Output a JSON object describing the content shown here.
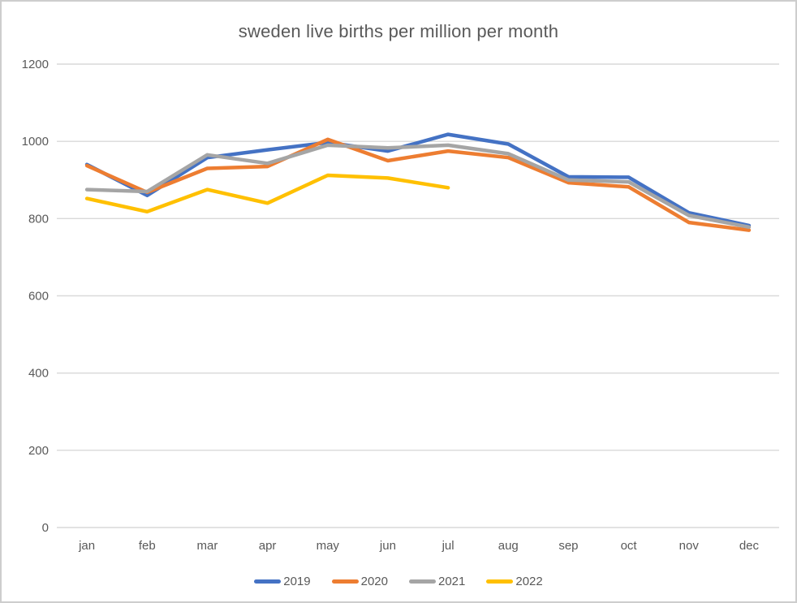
{
  "chart": {
    "title": "sweden live births per million per month"
  },
  "chart_data": {
    "type": "line",
    "title": "sweden live births per million per month",
    "xlabel": "",
    "ylabel": "",
    "categories": [
      "jan",
      "feb",
      "mar",
      "apr",
      "may",
      "jun",
      "jul",
      "aug",
      "sep",
      "oct",
      "nov",
      "dec"
    ],
    "series": [
      {
        "name": "2019",
        "color": "#4472C4",
        "values": [
          940,
          860,
          958,
          978,
          997,
          975,
          1018,
          993,
          908,
          907,
          815,
          782
        ]
      },
      {
        "name": "2020",
        "color": "#ED7D31",
        "values": [
          937,
          868,
          930,
          935,
          1005,
          950,
          975,
          958,
          893,
          882,
          790,
          770
        ]
      },
      {
        "name": "2021",
        "color": "#A5A5A5",
        "values": [
          875,
          870,
          965,
          943,
          990,
          983,
          990,
          968,
          900,
          895,
          808,
          778
        ]
      },
      {
        "name": "2022",
        "color": "#FFC000",
        "values": [
          852,
          818,
          875,
          840,
          912,
          905,
          880,
          null,
          null,
          null,
          null,
          null
        ]
      }
    ],
    "ylim": [
      0,
      1200
    ],
    "ytick_interval": 200,
    "grid": true,
    "legend_position": "bottom"
  },
  "style": {
    "grid_color": "#d9d9d9",
    "text_color": "#595959",
    "border_color": "#cdcdcd",
    "background": "#ffffff"
  }
}
